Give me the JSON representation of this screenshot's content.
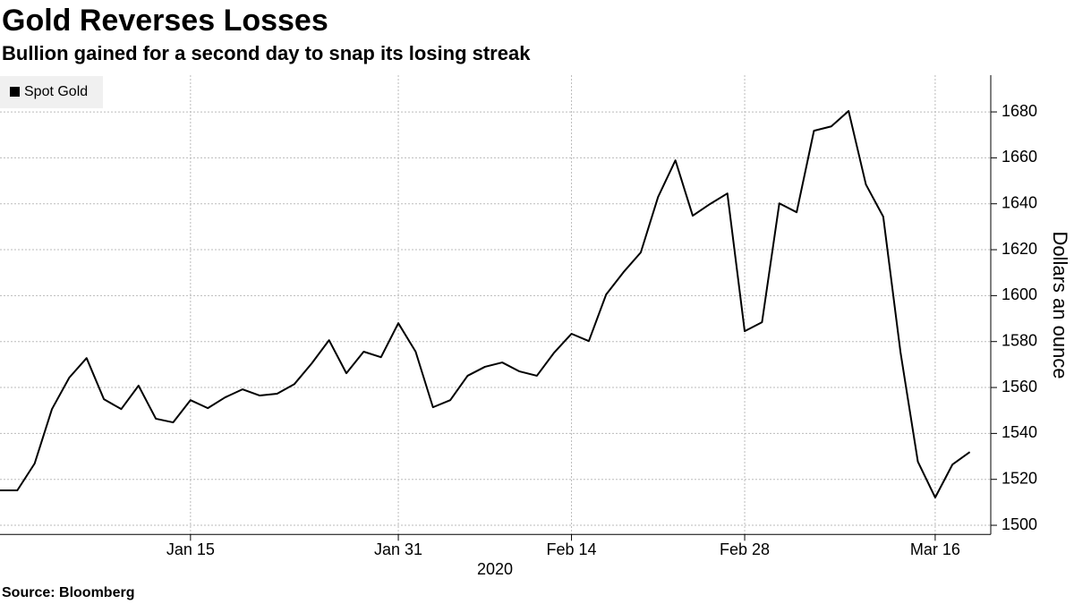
{
  "chart_data": {
    "type": "line",
    "title": "Gold Reverses Losses",
    "subtitle": "Bullion gained for a second day to snap its losing streak",
    "source": "Source: Bloomberg",
    "xlabel": "2020",
    "ylabel": "Dollars an ounce",
    "categories": [
      null,
      null,
      null,
      null,
      null,
      null,
      null,
      null,
      null,
      null,
      null,
      "Jan 15",
      null,
      null,
      null,
      null,
      null,
      null,
      null,
      null,
      null,
      null,
      null,
      "Jan 31",
      null,
      null,
      null,
      null,
      null,
      null,
      null,
      null,
      null,
      "Feb 14",
      null,
      null,
      null,
      null,
      null,
      null,
      null,
      null,
      null,
      "Feb 28",
      null,
      null,
      null,
      null,
      null,
      null,
      null,
      null,
      null,
      null,
      "Mar 16",
      null,
      null
    ],
    "series": [
      {
        "name": "Spot Gold",
        "color": "#000000",
        "values": [
          1515.2,
          1515.2,
          1526.9,
          1550.6,
          1564.3,
          1572.8,
          1554.9,
          1550.6,
          1560.8,
          1546.4,
          1544.8,
          1554.5,
          1551.0,
          1555.7,
          1559.2,
          1556.5,
          1557.3,
          1561.5,
          1570.5,
          1580.6,
          1566.2,
          1575.6,
          1573.2,
          1588.0,
          1575.6,
          1551.4,
          1554.5,
          1565.1,
          1569.0,
          1570.9,
          1567.0,
          1565.1,
          1575.2,
          1583.4,
          1580.2,
          1600.5,
          1610.2,
          1618.8,
          1643.0,
          1658.9,
          1634.8,
          1639.9,
          1644.5,
          1584.5,
          1588.4,
          1640.2,
          1636.3,
          1671.8,
          1673.7,
          1680.4,
          1648.4,
          1634.4,
          1575.2,
          1527.7,
          1512.1,
          1526.5,
          1531.9
        ]
      }
    ],
    "ylim": [
      1496,
      1696
    ],
    "yticks": [
      1500,
      1520,
      1540,
      1560,
      1580,
      1600,
      1620,
      1640,
      1660,
      1680
    ],
    "grid": true,
    "legend": "top-left"
  }
}
